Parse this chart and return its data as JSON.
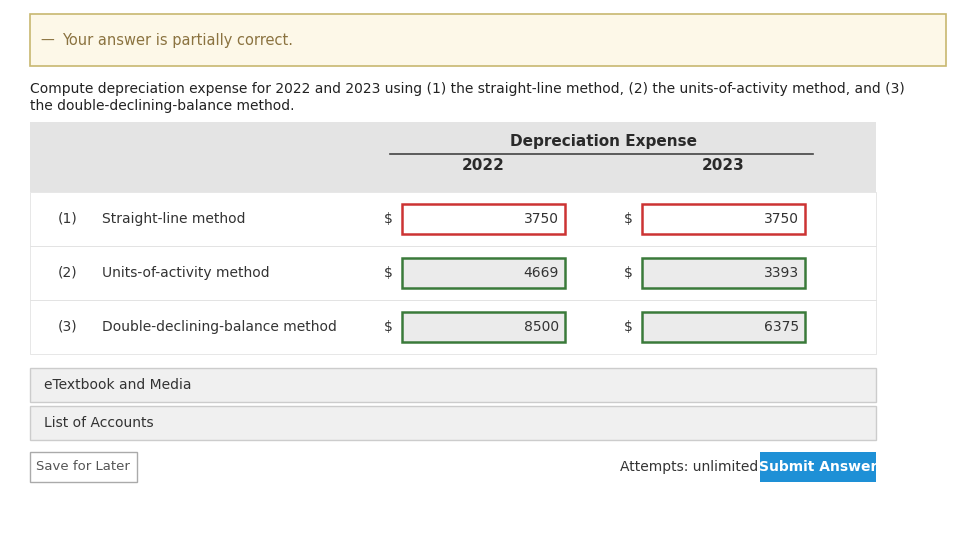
{
  "background_color": "#ffffff",
  "banner_bg": "#fdf8e8",
  "banner_border": "#c8b870",
  "banner_icon_color": "#8b7340",
  "banner_text": "Your answer is partially correct.",
  "banner_text_color": "#8b7340",
  "instruction_line1": "Compute depreciation expense for 2022 and 2023 using (1) the straight-line method, (2) the units-of-activity method, and (3)",
  "instruction_line2": "the double-declining-balance method.",
  "instruction_text_color": "#222222",
  "table_header_bg": "#e4e4e4",
  "table_row_bg": "#ffffff",
  "table_header_text": "Depreciation Expense",
  "col_headers": [
    "2022",
    "2023"
  ],
  "rows": [
    {
      "num": "(1)",
      "label": "Straight-line method",
      "val2022": "3750",
      "val2023": "3750",
      "border2022": "#cc3333",
      "border2023": "#cc3333"
    },
    {
      "num": "(2)",
      "label": "Units-of-activity method",
      "val2022": "4669",
      "val2023": "3393",
      "border2022": "#3a7a3a",
      "border2023": "#3a7a3a"
    },
    {
      "num": "(3)",
      "label": "Double-declining-balance method",
      "val2022": "8500",
      "val2023": "6375",
      "border2022": "#3a7a3a",
      "border2023": "#3a7a3a"
    }
  ],
  "footer_sections": [
    "eTextbook and Media",
    "List of Accounts"
  ],
  "save_button_text": "Save for Later",
  "attempts_text": "Attempts: unlimited",
  "submit_button_text": "Submit Answer",
  "submit_button_bg": "#1e90d6",
  "submit_button_text_color": "#ffffff",
  "footer_bg": "#f0f0f0",
  "footer_border": "#cccccc",
  "input_bg": "#ebebeb",
  "input_bg_red": "#ffffff"
}
